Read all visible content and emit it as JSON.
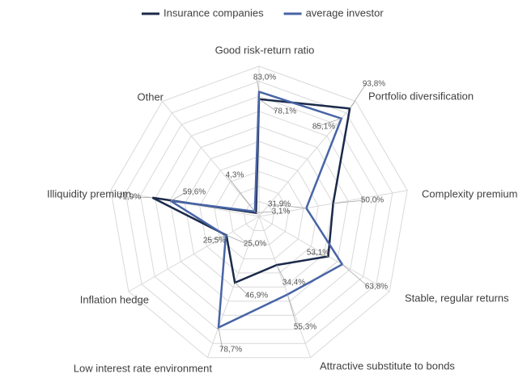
{
  "chart_data": {
    "type": "radar",
    "categories": [
      "Good risk-return ratio",
      "Portfolio diversification",
      "Complexity premium",
      "Stable, regular returns",
      "Attractive substitute to bonds",
      "Low interest rate environment",
      "Inflation hedge",
      "Illiquidity premium",
      "Other"
    ],
    "series": [
      {
        "name": "Insurance companies",
        "color": "#1b2a4a",
        "values": [
          78.1,
          93.8,
          50.0,
          53.1,
          34.4,
          46.9,
          25.0,
          71.9,
          3.1
        ],
        "value_labels": [
          "78,1%",
          "93,8%",
          "50,0%",
          "53,1%",
          "34,4%",
          "46,9%",
          "25,0%",
          "71,9%",
          "3,1%"
        ]
      },
      {
        "name": "average investor",
        "color": "#4764a6",
        "values": [
          83.0,
          85.1,
          31.9,
          63.8,
          55.3,
          78.7,
          25.5,
          59.6,
          4.3
        ],
        "value_labels": [
          "83,0%",
          "85,1%",
          "31,9%",
          "63,8%",
          "55,3%",
          "78,7%",
          "25,5%",
          "59,6%",
          "4,3%"
        ]
      }
    ],
    "ylim": [
      0,
      100
    ],
    "yticks": [
      0,
      10,
      20,
      30,
      40,
      50,
      60,
      70,
      80,
      90,
      100
    ],
    "grid": true,
    "legend": "top"
  }
}
